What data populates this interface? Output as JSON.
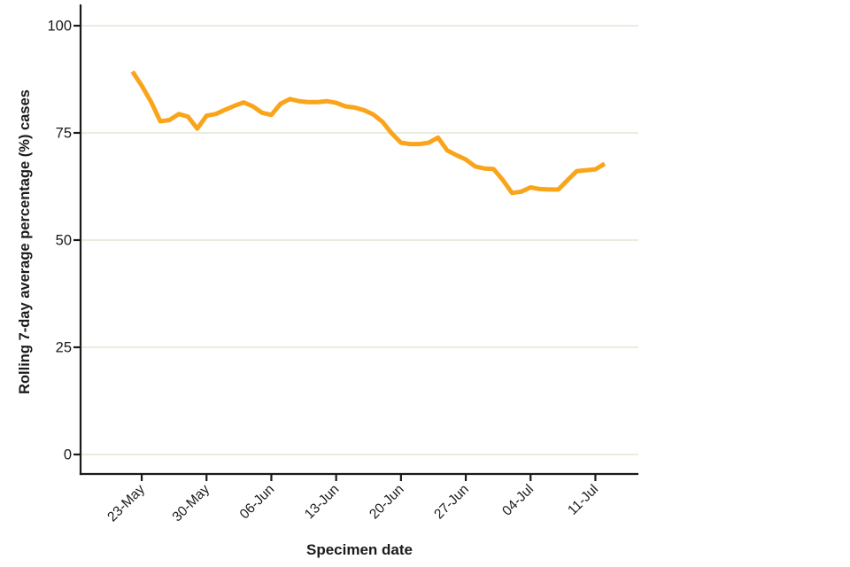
{
  "colors": {
    "line": "#FAA41A",
    "grid": "#EBEBE0",
    "axis": "#1A1A1A",
    "text": "#1A1A1A",
    "background": "#FFFFFF"
  },
  "chart_data": {
    "type": "line",
    "title": "",
    "xlabel": "Specimen date",
    "ylabel": "Rolling 7-day average percentage (%) cases",
    "ylim": [
      0,
      100
    ],
    "yticks": [
      0,
      25,
      50,
      75,
      100
    ],
    "xtick_labels": [
      "23-May",
      "30-May",
      "06-Jun",
      "13-Jun",
      "20-Jun",
      "27-Jun",
      "04-Jul",
      "11-Jul"
    ],
    "grid": "horizontal",
    "legend_position": "none",
    "series": [
      {
        "name": "Rolling 7-day average percentage cases",
        "color": "#FAA41A",
        "x": [
          "22-May",
          "23-May",
          "24-May",
          "25-May",
          "26-May",
          "27-May",
          "28-May",
          "29-May",
          "30-May",
          "31-May",
          "01-Jun",
          "02-Jun",
          "03-Jun",
          "04-Jun",
          "05-Jun",
          "06-Jun",
          "07-Jun",
          "08-Jun",
          "09-Jun",
          "10-Jun",
          "11-Jun",
          "12-Jun",
          "13-Jun",
          "14-Jun",
          "15-Jun",
          "16-Jun",
          "17-Jun",
          "18-Jun",
          "19-Jun",
          "20-Jun",
          "21-Jun",
          "22-Jun",
          "23-Jun",
          "24-Jun",
          "25-Jun",
          "26-Jun",
          "27-Jun",
          "28-Jun",
          "29-Jun",
          "30-Jun",
          "01-Jul",
          "02-Jul",
          "03-Jul",
          "04-Jul",
          "05-Jul",
          "06-Jul",
          "07-Jul",
          "08-Jul",
          "09-Jul",
          "10-Jul",
          "11-Jul",
          "12-Jul"
        ],
        "values": [
          89.3,
          86.0,
          82.3,
          77.7,
          78.0,
          79.4,
          78.8,
          76.0,
          79.0,
          79.4,
          80.4,
          81.3,
          82.1,
          81.2,
          79.7,
          79.2,
          81.8,
          82.9,
          82.4,
          82.2,
          82.2,
          82.4,
          82.0,
          81.2,
          80.9,
          80.3,
          79.3,
          77.6,
          74.9,
          72.7,
          72.4,
          72.4,
          72.7,
          73.9,
          70.9,
          69.8,
          68.8,
          67.2,
          66.7,
          66.6,
          64.0,
          61.0,
          61.3,
          62.3,
          61.9,
          61.8,
          61.8,
          64.0,
          66.1,
          66.3,
          66.5,
          67.8
        ]
      }
    ]
  }
}
